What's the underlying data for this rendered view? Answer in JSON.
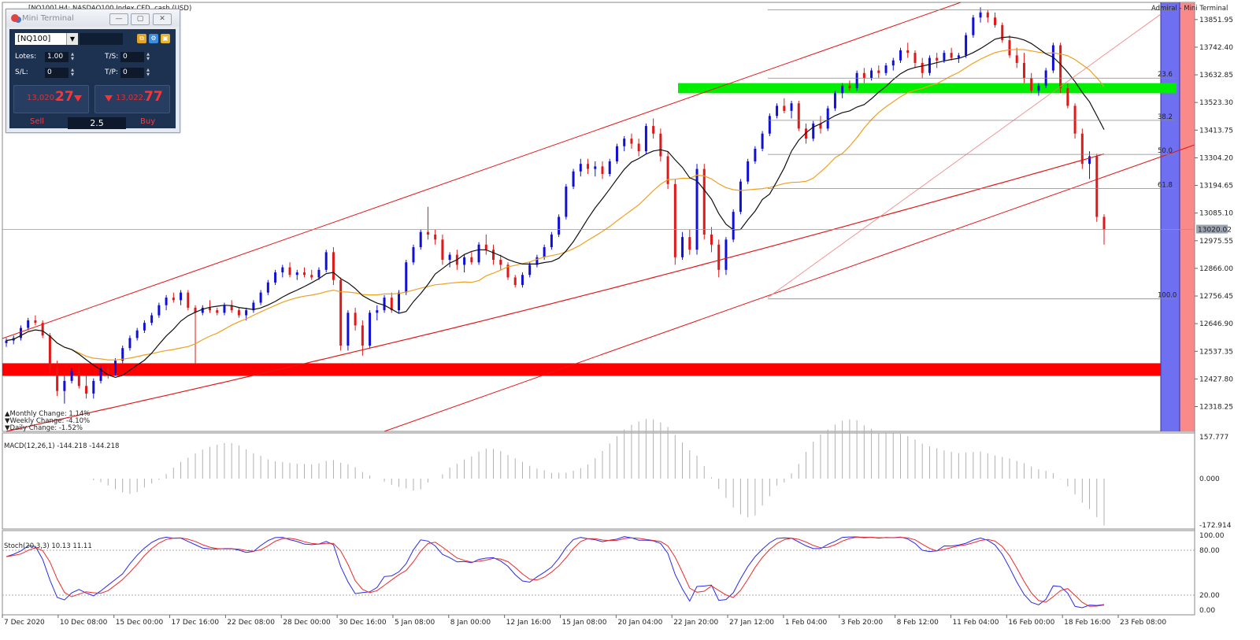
{
  "window_title": "[NQ100],H4: NASDAQ100 Index CFD, cash (USD)",
  "chart_data": {
    "type": "candlestick",
    "symbol": "[NQ100]",
    "timeframe": "H4",
    "description": "NASDAQ100 Index CFD, cash (USD)",
    "ylim": [
      12220,
      13920
    ],
    "current_price": "13020.02",
    "y_ticks": [
      "13851.95",
      "13742.40",
      "13632.85",
      "13523.30",
      "13413.75",
      "13304.20",
      "13194.65",
      "13085.10",
      "12975.55",
      "12866.00",
      "12756.45",
      "12646.90",
      "12537.35",
      "12427.80",
      "12318.25"
    ],
    "x_ticks": [
      "7 Dec 2020",
      "10 Dec 08:00",
      "15 Dec 00:00",
      "17 Dec 16:00",
      "22 Dec 08:00",
      "28 Dec 00:00",
      "30 Dec 16:00",
      "5 Jan 08:00",
      "8 Jan 00:00",
      "12 Jan 16:00",
      "15 Jan 08:00",
      "20 Jan 04:00",
      "22 Jan 20:00",
      "27 Jan 12:00",
      "1 Feb 04:00",
      "3 Feb 20:00",
      "8 Feb 12:00",
      "11 Feb 04:00",
      "16 Feb 00:00",
      "18 Feb 16:00",
      "23 Feb 08:00"
    ],
    "fibonacci": {
      "levels": [
        "23.6",
        "38.2",
        "50.0",
        "61.8",
        "100.0"
      ],
      "high": 13890,
      "low": 12745
    },
    "zones": [
      {
        "name": "resistance-zone",
        "color": "#00ee00",
        "from": 13560,
        "to": 13600
      },
      {
        "name": "support-zone",
        "color": "#ff0000",
        "from": 12440,
        "to": 12490
      }
    ],
    "changes": [
      {
        "label": "Monthly Change: 1.14%",
        "color": "#22aa22"
      },
      {
        "label": "Weekly Change: -4.10%",
        "color": "#ee2222"
      },
      {
        "label": "Daily Change: -1.52%",
        "color": "#ee2222"
      }
    ],
    "candles_ohlc": [
      [
        12570,
        12590,
        12555,
        12580
      ],
      [
        12580,
        12600,
        12565,
        12590
      ],
      [
        12590,
        12640,
        12580,
        12630
      ],
      [
        12630,
        12670,
        12620,
        12660
      ],
      [
        12660,
        12680,
        12640,
        12650
      ],
      [
        12650,
        12660,
        12590,
        12600
      ],
      [
        12600,
        12610,
        12450,
        12470
      ],
      [
        12470,
        12500,
        12360,
        12380
      ],
      [
        12380,
        12440,
        12330,
        12420
      ],
      [
        12420,
        12470,
        12410,
        12460
      ],
      [
        12460,
        12480,
        12390,
        12400
      ],
      [
        12400,
        12440,
        12350,
        12370
      ],
      [
        12370,
        12430,
        12350,
        12420
      ],
      [
        12420,
        12480,
        12410,
        12470
      ],
      [
        12470,
        12490,
        12430,
        12450
      ],
      [
        12450,
        12510,
        12440,
        12500
      ],
      [
        12500,
        12560,
        12490,
        12550
      ],
      [
        12550,
        12600,
        12540,
        12590
      ],
      [
        12590,
        12630,
        12580,
        12620
      ],
      [
        12620,
        12660,
        12610,
        12650
      ],
      [
        12650,
        12690,
        12640,
        12680
      ],
      [
        12680,
        12730,
        12670,
        12720
      ],
      [
        12720,
        12760,
        12700,
        12750
      ],
      [
        12750,
        12770,
        12730,
        12740
      ],
      [
        12740,
        12780,
        12720,
        12770
      ],
      [
        12770,
        12780,
        12700,
        12710
      ],
      [
        12710,
        12720,
        12490,
        12690
      ],
      [
        12690,
        12720,
        12680,
        12710
      ],
      [
        12710,
        12740,
        12690,
        12700
      ],
      [
        12700,
        12710,
        12680,
        12690
      ],
      [
        12690,
        12730,
        12680,
        12720
      ],
      [
        12720,
        12740,
        12690,
        12700
      ],
      [
        12700,
        12710,
        12670,
        12680
      ],
      [
        12680,
        12710,
        12660,
        12700
      ],
      [
        12700,
        12740,
        12690,
        12730
      ],
      [
        12730,
        12780,
        12720,
        12770
      ],
      [
        12770,
        12820,
        12760,
        12810
      ],
      [
        12810,
        12860,
        12800,
        12850
      ],
      [
        12850,
        12880,
        12830,
        12870
      ],
      [
        12870,
        12890,
        12830,
        12840
      ],
      [
        12840,
        12860,
        12820,
        12850
      ],
      [
        12850,
        12870,
        12830,
        12840
      ],
      [
        12840,
        12860,
        12820,
        12830
      ],
      [
        12830,
        12870,
        12820,
        12860
      ],
      [
        12860,
        12940,
        12850,
        12930
      ],
      [
        12930,
        12950,
        12800,
        12820
      ],
      [
        12820,
        12830,
        12540,
        12560
      ],
      [
        12560,
        12700,
        12540,
        12690
      ],
      [
        12690,
        12710,
        12620,
        12640
      ],
      [
        12640,
        12660,
        12520,
        12560
      ],
      [
        12560,
        12700,
        12550,
        12690
      ],
      [
        12690,
        12720,
        12660,
        12700
      ],
      [
        12700,
        12760,
        12690,
        12750
      ],
      [
        12750,
        12770,
        12690,
        12700
      ],
      [
        12700,
        12780,
        12690,
        12770
      ],
      [
        12770,
        12900,
        12760,
        12890
      ],
      [
        12890,
        12960,
        12880,
        12950
      ],
      [
        12950,
        13020,
        12940,
        13010
      ],
      [
        13010,
        13110,
        12980,
        13000
      ],
      [
        13000,
        13020,
        12960,
        12980
      ],
      [
        12980,
        13000,
        12880,
        12900
      ],
      [
        12900,
        12930,
        12870,
        12920
      ],
      [
        12920,
        12940,
        12860,
        12880
      ],
      [
        12880,
        12920,
        12850,
        12910
      ],
      [
        12910,
        12930,
        12880,
        12890
      ],
      [
        12890,
        12970,
        12880,
        12960
      ],
      [
        12960,
        13000,
        12920,
        12940
      ],
      [
        12940,
        12960,
        12880,
        12900
      ],
      [
        12900,
        12920,
        12860,
        12880
      ],
      [
        12880,
        12890,
        12820,
        12830
      ],
      [
        12830,
        12840,
        12790,
        12800
      ],
      [
        12800,
        12850,
        12790,
        12840
      ],
      [
        12840,
        12890,
        12830,
        12880
      ],
      [
        12880,
        12920,
        12870,
        12910
      ],
      [
        12910,
        12960,
        12900,
        12950
      ],
      [
        12950,
        13010,
        12940,
        13000
      ],
      [
        13000,
        13080,
        12990,
        13070
      ],
      [
        13070,
        13200,
        13060,
        13190
      ],
      [
        13190,
        13260,
        13180,
        13250
      ],
      [
        13250,
        13300,
        13230,
        13280
      ],
      [
        13280,
        13300,
        13240,
        13260
      ],
      [
        13260,
        13290,
        13230,
        13270
      ],
      [
        13270,
        13290,
        13220,
        13240
      ],
      [
        13240,
        13300,
        13230,
        13290
      ],
      [
        13290,
        13360,
        13280,
        13350
      ],
      [
        13350,
        13390,
        13330,
        13380
      ],
      [
        13380,
        13400,
        13340,
        13360
      ],
      [
        13360,
        13380,
        13310,
        13330
      ],
      [
        13330,
        13440,
        13320,
        13430
      ],
      [
        13430,
        13460,
        13380,
        13400
      ],
      [
        13400,
        13420,
        13290,
        13310
      ],
      [
        13310,
        13330,
        13180,
        13200
      ],
      [
        13200,
        13220,
        12880,
        12910
      ],
      [
        12910,
        13010,
        12900,
        12990
      ],
      [
        12990,
        13020,
        12920,
        12940
      ],
      [
        12940,
        13280,
        12920,
        13260
      ],
      [
        13260,
        13280,
        12980,
        13000
      ],
      [
        13000,
        13030,
        12930,
        12960
      ],
      [
        12960,
        12980,
        12830,
        12860
      ],
      [
        12860,
        12990,
        12840,
        12980
      ],
      [
        12980,
        13100,
        12970,
        13090
      ],
      [
        13090,
        13220,
        13080,
        13210
      ],
      [
        13210,
        13300,
        13200,
        13290
      ],
      [
        13290,
        13350,
        13280,
        13340
      ],
      [
        13340,
        13410,
        13330,
        13400
      ],
      [
        13400,
        13480,
        13390,
        13470
      ],
      [
        13470,
        13520,
        13460,
        13510
      ],
      [
        13510,
        13540,
        13480,
        13490
      ],
      [
        13490,
        13530,
        13460,
        13520
      ],
      [
        13520,
        13530,
        13410,
        13420
      ],
      [
        13420,
        13440,
        13360,
        13380
      ],
      [
        13380,
        13450,
        13370,
        13440
      ],
      [
        13440,
        13470,
        13400,
        13420
      ],
      [
        13420,
        13510,
        13410,
        13500
      ],
      [
        13500,
        13570,
        13490,
        13560
      ],
      [
        13560,
        13600,
        13540,
        13590
      ],
      [
        13590,
        13610,
        13570,
        13580
      ],
      [
        13580,
        13650,
        13570,
        13640
      ],
      [
        13640,
        13660,
        13600,
        13620
      ],
      [
        13620,
        13660,
        13610,
        13650
      ],
      [
        13650,
        13670,
        13620,
        13640
      ],
      [
        13640,
        13680,
        13630,
        13670
      ],
      [
        13670,
        13700,
        13650,
        13690
      ],
      [
        13690,
        13740,
        13680,
        13730
      ],
      [
        13730,
        13760,
        13700,
        13720
      ],
      [
        13720,
        13730,
        13660,
        13680
      ],
      [
        13680,
        13700,
        13620,
        13640
      ],
      [
        13640,
        13710,
        13630,
        13700
      ],
      [
        13700,
        13720,
        13660,
        13690
      ],
      [
        13690,
        13730,
        13680,
        13720
      ],
      [
        13720,
        13740,
        13690,
        13700
      ],
      [
        13700,
        13720,
        13680,
        13710
      ],
      [
        13710,
        13800,
        13700,
        13790
      ],
      [
        13790,
        13870,
        13780,
        13860
      ],
      [
        13860,
        13900,
        13840,
        13880
      ],
      [
        13880,
        13890,
        13840,
        13860
      ],
      [
        13860,
        13880,
        13820,
        13830
      ],
      [
        13830,
        13840,
        13760,
        13770
      ],
      [
        13770,
        13790,
        13700,
        13710
      ],
      [
        13710,
        13740,
        13660,
        13680
      ],
      [
        13680,
        13720,
        13600,
        13620
      ],
      [
        13620,
        13640,
        13560,
        13570
      ],
      [
        13570,
        13600,
        13550,
        13590
      ],
      [
        13590,
        13660,
        13580,
        13650
      ],
      [
        13650,
        13760,
        13640,
        13750
      ],
      [
        13750,
        13760,
        13560,
        13580
      ],
      [
        13580,
        13600,
        13500,
        13510
      ],
      [
        13510,
        13520,
        13380,
        13400
      ],
      [
        13400,
        13420,
        13260,
        13280
      ],
      [
        13280,
        13330,
        13220,
        13310
      ],
      [
        13310,
        13320,
        13050,
        13070
      ],
      [
        13070,
        13080,
        12960,
        13020
      ]
    ]
  },
  "mini_terminal": {
    "title": "Mini Terminal",
    "symbol": "[NQ100]",
    "lots_label": "Lotes:",
    "lots": "1.00",
    "ts_label": "T/S:",
    "ts": "0",
    "sl_label": "S/L:",
    "sl": "0",
    "tp_label": "T/P:",
    "tp": "0",
    "sell_price_small": "13,020.",
    "sell_price_big": "27",
    "buy_price_small": "13,022.",
    "buy_price_big": "77",
    "sell_label": "Sell",
    "buy_label": "Buy",
    "quantity": "2.5"
  },
  "expert_label": "Admiral - Mini Terminal",
  "macd": {
    "label": "MACD(12,26,1) -144.218 -144.218",
    "ticks": [
      "157.777",
      "0.000",
      "-172.914"
    ]
  },
  "stoch": {
    "label": "Stoch(20,3,3) 10.13 11.11",
    "ticks": [
      "100.00",
      "80.00",
      "20.00",
      "0.00"
    ]
  }
}
